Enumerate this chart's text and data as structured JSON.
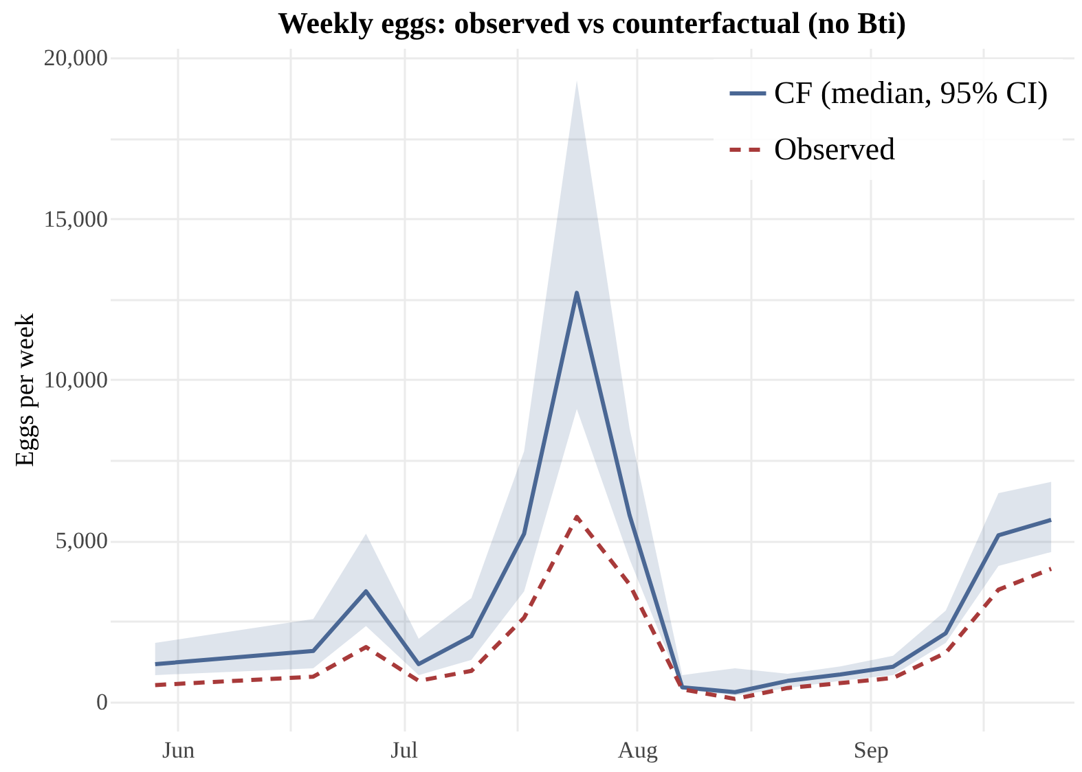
{
  "chart_data": {
    "type": "line",
    "title": "Weekly eggs: observed vs counterfactual (no Bti)",
    "ylabel": "Eggs per week",
    "x": [
      "--05-29",
      "--06-19",
      "--06-26",
      "--07-03",
      "--07-10",
      "--07-17",
      "--07-24",
      "--07-31",
      "--08-07",
      "--08-14",
      "--08-21",
      "--08-28",
      "--09-04",
      "--09-11",
      "--09-18",
      "--09-25"
    ],
    "series": [
      {
        "name": "CF (median, 95% CI)",
        "color": "#4a6794",
        "line_style": "solid",
        "values": [
          1170,
          1580,
          3430,
          1170,
          2040,
          5220,
          12700,
          5800,
          450,
          300,
          650,
          850,
          1090,
          2130,
          5170,
          5650
        ],
        "lower": [
          830,
          1040,
          2350,
          830,
          1300,
          3430,
          9090,
          4430,
          390,
          200,
          430,
          650,
          830,
          1830,
          4220,
          4650
        ],
        "upper": [
          1830,
          2570,
          5220,
          1960,
          3220,
          7780,
          19300,
          8500,
          830,
          1040,
          870,
          1100,
          1430,
          2830,
          6480,
          6830
        ]
      },
      {
        "name": "Observed",
        "color": "#a83a3a",
        "line_style": "dashed",
        "values": [
          520,
          780,
          1700,
          650,
          960,
          2610,
          5740,
          3650,
          390,
          90,
          430,
          580,
          740,
          1520,
          3480,
          4130
        ]
      }
    ],
    "xlim": [
      "--05-23",
      "--09-28"
    ],
    "xticks": [
      {
        "value": "--06-01",
        "label": "Jun"
      },
      {
        "value": "--06-16",
        "label": null
      },
      {
        "value": "--07-01",
        "label": "Jul"
      },
      {
        "value": "--07-16",
        "label": null
      },
      {
        "value": "--08-01",
        "label": "Aug"
      },
      {
        "value": "--08-16",
        "label": null
      },
      {
        "value": "--09-01",
        "label": "Sep"
      },
      {
        "value": "--09-16",
        "label": null
      }
    ],
    "ylim": [
      -900,
      20300
    ],
    "yticks": [
      {
        "value": 0,
        "label": "0"
      },
      {
        "value": 2500,
        "label": null
      },
      {
        "value": 5000,
        "label": "5,000"
      },
      {
        "value": 7500,
        "label": null
      },
      {
        "value": 10000,
        "label": "10,000"
      },
      {
        "value": 12500,
        "label": null
      },
      {
        "value": 15000,
        "label": "15,000"
      },
      {
        "value": 17500,
        "label": null
      },
      {
        "value": 20000,
        "label": "20,000"
      }
    ],
    "grid": true,
    "legend": "top right"
  }
}
